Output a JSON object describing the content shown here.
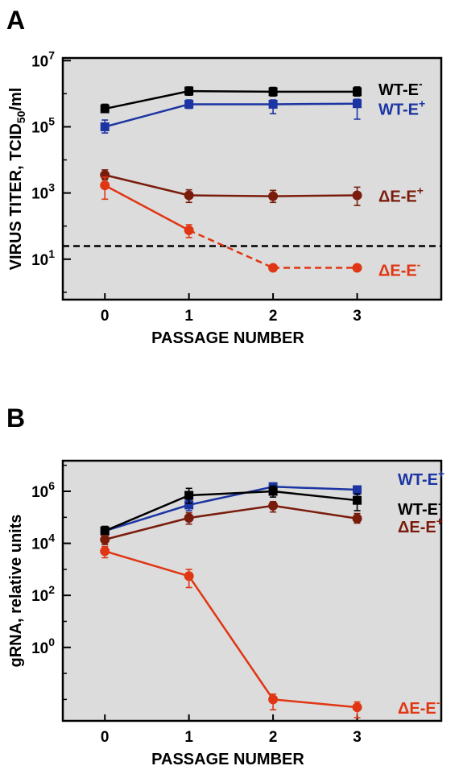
{
  "chart_data": [
    {
      "panel": "A",
      "type": "line",
      "ylabel_main": "VIRUS TITER,  TCID",
      "ylabel_sub": "50",
      "ylabel_tail": "/ml",
      "xlabel": "PASSAGE NUMBER",
      "y_scale": "log",
      "grid": false,
      "x": [
        0,
        1,
        2,
        3
      ],
      "xlim": [
        -0.5,
        4.0
      ],
      "ylim": [
        0.6,
        12000000
      ],
      "x_ticks": [
        "0",
        "1",
        "2",
        "3"
      ],
      "y_ticks": [
        {
          "value": 10,
          "base": "10",
          "exp": "1"
        },
        {
          "value": 1000,
          "base": "10",
          "exp": "3"
        },
        {
          "value": 100000,
          "base": "10",
          "exp": "5"
        },
        {
          "value": 10000000,
          "base": "10",
          "exp": "7"
        }
      ],
      "threshold": 25,
      "series": [
        {
          "name": "WT-E",
          "sup": "-",
          "color": "#000000",
          "marker": "square",
          "values": [
            350000,
            1200000,
            1150000,
            1150000
          ],
          "err_low": [
            280000,
            900000,
            850000,
            850000
          ],
          "err_high": [
            480000,
            1600000,
            1550000,
            1600000
          ],
          "dashed_from_index": null
        },
        {
          "name": "WT-E",
          "sup": "+",
          "color": "#1c35a3",
          "marker": "square",
          "values": [
            100000,
            480000,
            480000,
            500000
          ],
          "err_low": [
            65000,
            360000,
            250000,
            170000
          ],
          "err_high": [
            160000,
            650000,
            650000,
            680000
          ],
          "dashed_from_index": null
        },
        {
          "name": "ΔE-E",
          "sup": "+",
          "color": "#7a1c0c",
          "marker": "circle",
          "values": [
            3500,
            850,
            800,
            850
          ],
          "err_low": [
            2500,
            520,
            520,
            420
          ],
          "err_high": [
            5000,
            1250,
            1200,
            1500
          ],
          "dashed_from_index": null
        },
        {
          "name": "ΔE-E",
          "sup": "-",
          "color": "#e03613",
          "marker": "circle",
          "values": [
            1700,
            75,
            5.5,
            5.5
          ],
          "err_low": [
            650,
            45,
            null,
            null
          ],
          "err_high": [
            3000,
            110,
            null,
            null
          ],
          "dashed_from_index": 1
        }
      ]
    },
    {
      "panel": "B",
      "type": "line",
      "ylabel_main": "gRNA, relative units",
      "xlabel": "PASSAGE NUMBER",
      "y_scale": "log",
      "grid": false,
      "x": [
        0,
        1,
        2,
        3
      ],
      "xlim": [
        -0.5,
        4.0
      ],
      "ylim": [
        0.0015,
        15000000
      ],
      "x_ticks": [
        "0",
        "1",
        "2",
        "3"
      ],
      "y_ticks": [
        {
          "value": 1,
          "base": "10",
          "exp": "0"
        },
        {
          "value": 100,
          "base": "10",
          "exp": "2"
        },
        {
          "value": 10000,
          "base": "10",
          "exp": "4"
        },
        {
          "value": 1000000,
          "base": "10",
          "exp": "6"
        }
      ],
      "series": [
        {
          "name": "WT-E",
          "sup": "+",
          "color": "#1c35a3",
          "marker": "square",
          "values": [
            30000,
            300000,
            1500000,
            1150000
          ],
          "err_low": [
            22000,
            180000,
            900000,
            750000
          ],
          "err_high": [
            40000,
            450000,
            2100000,
            1600000
          ],
          "dashed_from_index": null
        },
        {
          "name": "WT-E",
          "sup": "-",
          "color": "#000000",
          "marker": "square",
          "values": [
            30000,
            700000,
            1000000,
            450000
          ],
          "err_low": [
            20000,
            350000,
            600000,
            180000
          ],
          "err_high": [
            45000,
            1300000,
            1600000,
            800000
          ],
          "dashed_from_index": null
        },
        {
          "name": "ΔE-E",
          "sup": "+",
          "color": "#7a1c0c",
          "marker": "circle",
          "values": [
            14000,
            95000,
            280000,
            90000
          ],
          "err_low": [
            9000,
            55000,
            160000,
            60000
          ],
          "err_high": [
            20000,
            150000,
            400000,
            140000
          ],
          "dashed_from_index": null
        },
        {
          "name": "ΔE-E",
          "sup": "-",
          "color": "#e03613",
          "marker": "circle",
          "values": [
            5000,
            550,
            0.01,
            0.005
          ],
          "err_low": [
            2800,
            200,
            0.004,
            0.002
          ],
          "err_high": [
            7500,
            1000,
            0.016,
            0.008
          ],
          "dashed_from_index": null
        }
      ]
    }
  ]
}
